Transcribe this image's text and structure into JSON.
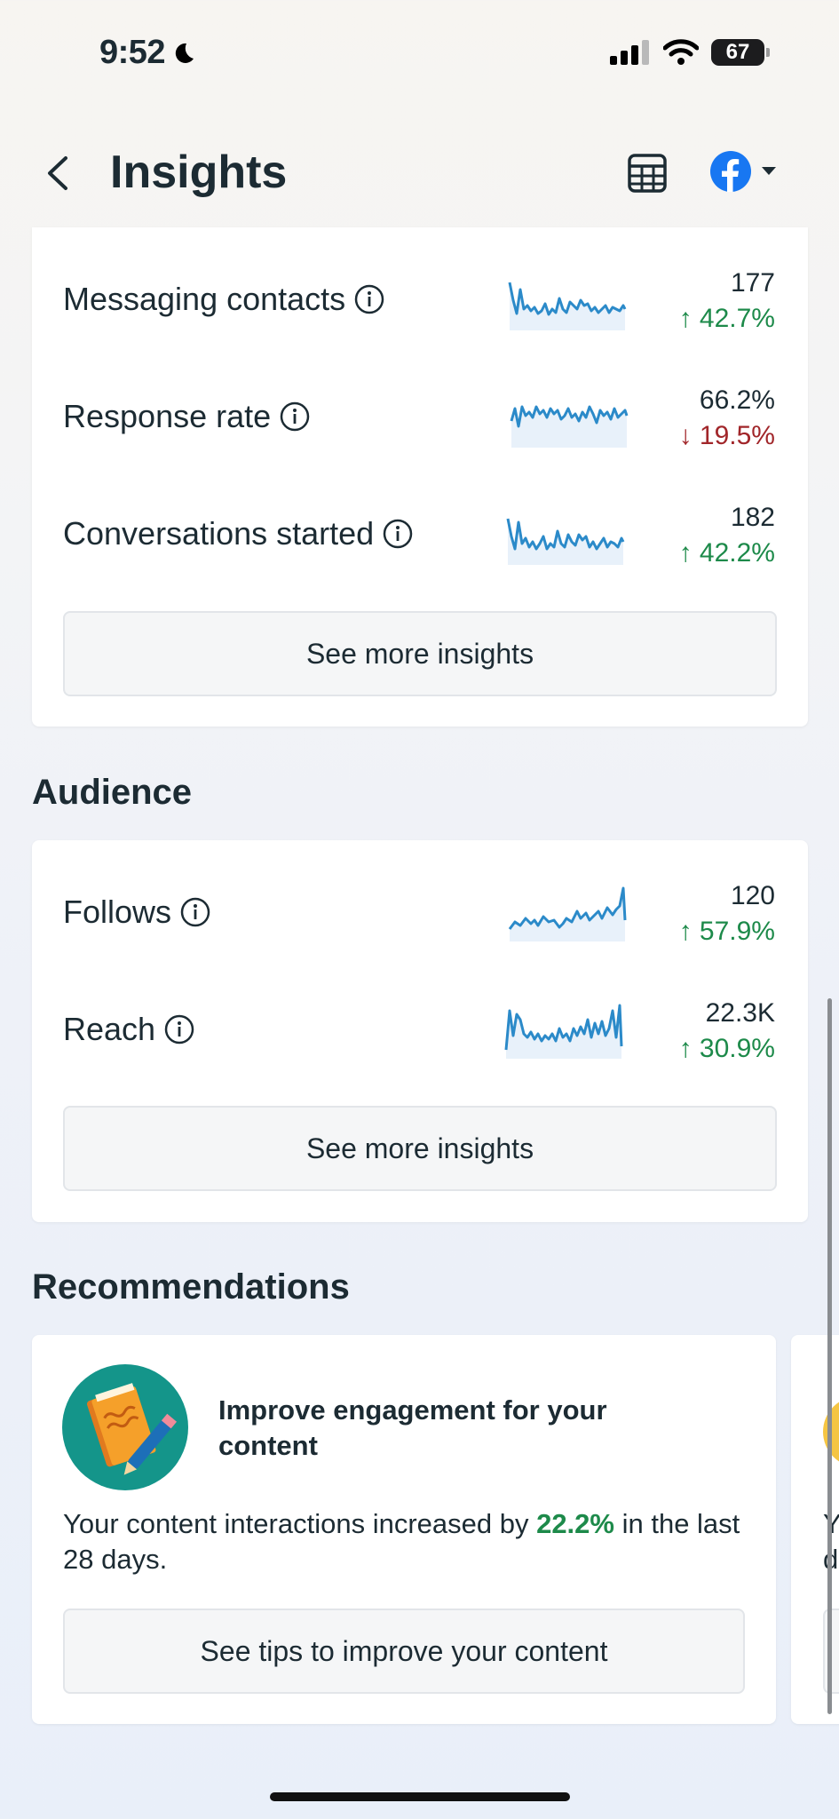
{
  "status_bar": {
    "time": "9:52",
    "battery": "67"
  },
  "header": {
    "title": "Insights"
  },
  "messaging": {
    "metrics": [
      {
        "label": "Messaging contacts",
        "value": "177",
        "change": "42.7%",
        "direction": "up"
      },
      {
        "label": "Response rate",
        "value": "66.2%",
        "change": "19.5%",
        "direction": "down"
      },
      {
        "label": "Conversations started",
        "value": "182",
        "change": "42.2%",
        "direction": "up"
      }
    ],
    "see_more_label": "See more insights"
  },
  "audience": {
    "title": "Audience",
    "metrics": [
      {
        "label": "Follows",
        "value": "120",
        "change": "57.9%",
        "direction": "up"
      },
      {
        "label": "Reach",
        "value": "22.3K",
        "change": "30.9%",
        "direction": "up"
      }
    ],
    "see_more_label": "See more insights"
  },
  "recommendations": {
    "title": "Recommendations",
    "card": {
      "title": "Improve engagement for your content",
      "body_prefix": "Your content interactions increased by ",
      "body_highlight": "22.2%",
      "body_suffix": " in the last 28 days.",
      "button_label": "See tips to improve your content"
    },
    "peek_card": {
      "line1": "Y",
      "line2": "d"
    }
  },
  "colors": {
    "up": "#1d8a4a",
    "down": "#a1262a",
    "sparkline": "#2b8ac9",
    "facebook": "#1877f2"
  }
}
